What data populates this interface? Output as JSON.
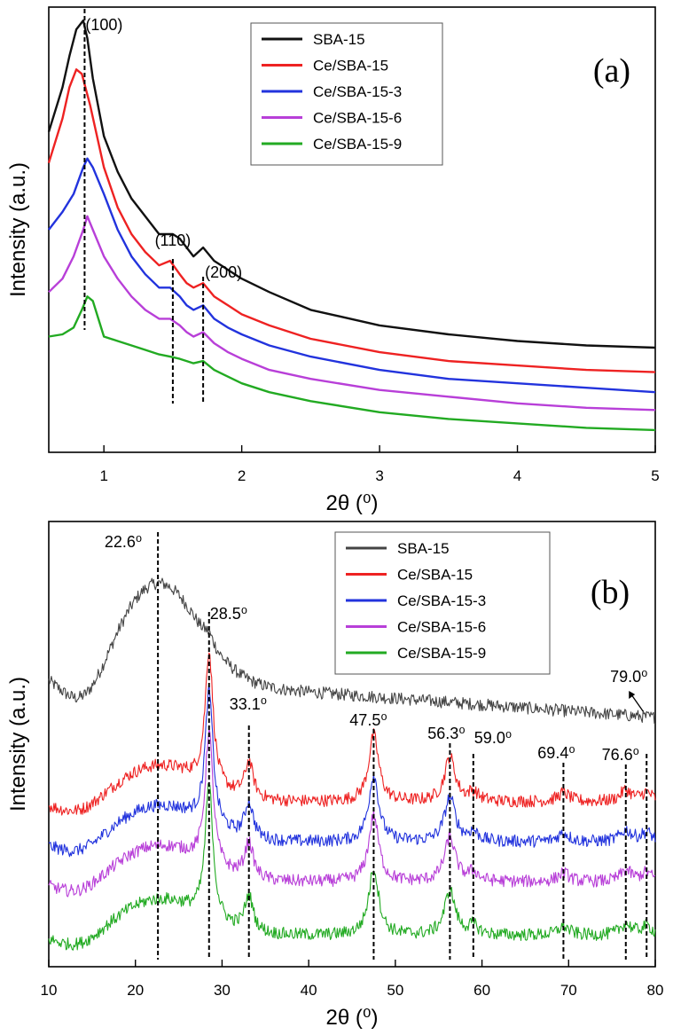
{
  "chart_data": [
    {
      "panel": "(a)",
      "type": "line",
      "xlabel": "2θ (⁰)",
      "ylabel": "Intensity (a.u.)",
      "xlim": [
        0.6,
        5.0
      ],
      "ylim": [
        0,
        100
      ],
      "xticks": [
        1,
        2,
        3,
        4,
        5
      ],
      "y_ticks_labeled": false,
      "legend": {
        "position": "top-right",
        "entries": [
          "SBA-15",
          "Ce/SBA-15",
          "Ce/SBA-15-3",
          "Ce/SBA-15-6",
          "Ce/SBA-15-9"
        ]
      },
      "series": [
        {
          "name": "SBA-15",
          "color": "#111111",
          "x": [
            0.6,
            0.7,
            0.75,
            0.8,
            0.85,
            0.88,
            0.92,
            1.0,
            1.1,
            1.2,
            1.3,
            1.4,
            1.45,
            1.5,
            1.55,
            1.6,
            1.65,
            1.72,
            1.8,
            1.9,
            2.0,
            2.2,
            2.5,
            3.0,
            3.5,
            4.0,
            4.5,
            5.0
          ],
          "y": [
            72,
            82,
            89,
            95,
            97,
            93,
            84,
            71,
            63,
            57,
            53,
            49,
            49,
            49,
            48,
            46,
            44,
            46,
            43,
            41,
            39,
            36,
            32,
            28.5,
            26.5,
            25,
            24,
            23.5
          ]
        },
        {
          "name": "Ce/SBA-15",
          "color": "#ee2222",
          "x": [
            0.6,
            0.7,
            0.75,
            0.8,
            0.84,
            0.9,
            1.0,
            1.1,
            1.2,
            1.3,
            1.4,
            1.48,
            1.55,
            1.6,
            1.65,
            1.72,
            1.8,
            1.9,
            2.0,
            2.2,
            2.5,
            3.0,
            3.5,
            4.0,
            4.5,
            5.0
          ],
          "y": [
            65,
            75,
            82,
            86,
            85,
            78,
            64,
            55,
            49,
            45,
            42,
            43,
            40,
            38,
            37,
            38,
            35,
            33,
            31,
            28.5,
            25.5,
            22.5,
            20.5,
            19.5,
            18.5,
            18
          ]
        },
        {
          "name": "Ce/SBA-15-3",
          "color": "#2233dd",
          "x": [
            0.6,
            0.7,
            0.78,
            0.85,
            0.88,
            0.92,
            1.0,
            1.1,
            1.2,
            1.3,
            1.4,
            1.48,
            1.55,
            1.6,
            1.65,
            1.72,
            1.8,
            1.9,
            2.0,
            2.2,
            2.5,
            3.0,
            3.5,
            4.0,
            4.5,
            5.0
          ],
          "y": [
            50,
            54,
            58,
            64,
            66,
            64,
            58,
            50,
            44,
            40,
            37,
            37,
            35,
            33,
            32,
            33,
            30,
            28,
            26.5,
            24,
            21.5,
            18.5,
            16.5,
            15.5,
            14.5,
            13.5
          ]
        },
        {
          "name": "Ce/SBA-15-6",
          "color": "#b83fd8",
          "x": [
            0.6,
            0.7,
            0.78,
            0.85,
            0.88,
            0.92,
            1.0,
            1.1,
            1.2,
            1.3,
            1.4,
            1.48,
            1.55,
            1.6,
            1.65,
            1.72,
            1.8,
            1.9,
            2.0,
            2.2,
            2.5,
            3.0,
            3.5,
            4.0,
            4.5,
            5.0
          ],
          "y": [
            36,
            39,
            44,
            50,
            53,
            50,
            44,
            39,
            35,
            32,
            30,
            30,
            28.5,
            27,
            26,
            27,
            24.5,
            22.5,
            21,
            18.5,
            16.5,
            14,
            12.5,
            11,
            10,
            9.5
          ]
        },
        {
          "name": "Ce/SBA-15-9",
          "color": "#22aa22",
          "x": [
            0.6,
            0.7,
            0.78,
            0.84,
            0.88,
            0.92,
            0.97,
            1.0,
            1.1,
            1.2,
            1.3,
            1.4,
            1.48,
            1.55,
            1.6,
            1.65,
            1.72,
            1.8,
            1.9,
            2.0,
            2.2,
            2.5,
            3.0,
            3.5,
            4.0,
            4.5,
            5.0
          ],
          "y": [
            26,
            26.5,
            28,
            32,
            35,
            34,
            29,
            26,
            25,
            24,
            23,
            22,
            21.5,
            21,
            20.5,
            20,
            20.5,
            18.5,
            17,
            15.5,
            13.5,
            11.5,
            9,
            7.5,
            6.5,
            5.5,
            5
          ]
        }
      ],
      "reference_lines": [
        0.86,
        1.5,
        1.72
      ],
      "annotations": [
        {
          "text": "(100)",
          "x": 0.86
        },
        {
          "text": "(110)",
          "x": 1.5
        },
        {
          "text": "(200)",
          "x": 1.72
        }
      ]
    },
    {
      "panel": "(b)",
      "type": "line",
      "xlabel": "2θ (⁰)",
      "ylabel": "Intensity (a.u.)",
      "xlim": [
        10,
        80
      ],
      "ylim": [
        0,
        100
      ],
      "xticks": [
        10,
        20,
        30,
        40,
        50,
        60,
        70,
        80
      ],
      "y_ticks_labeled": false,
      "legend": {
        "position": "top-right",
        "entries": [
          "SBA-15",
          "Ce/SBA-15",
          "Ce/SBA-15-3",
          "Ce/SBA-15-6",
          "Ce/SBA-15-9"
        ]
      },
      "series": [
        {
          "name": "SBA-15",
          "color": "#444444",
          "baseline": 56,
          "hump": 22,
          "ce_peaks": false
        },
        {
          "name": "Ce/SBA-15",
          "color": "#ee2222",
          "baseline": 37,
          "hump": 8,
          "ce_peaks": true
        },
        {
          "name": "Ce/SBA-15-3",
          "color": "#2233dd",
          "baseline": 28,
          "hump": 8,
          "ce_peaks": true
        },
        {
          "name": "Ce/SBA-15-6",
          "color": "#b83fd8",
          "baseline": 19,
          "hump": 8,
          "ce_peaks": true
        },
        {
          "name": "Ce/SBA-15-9",
          "color": "#22aa22",
          "baseline": 7,
          "hump": 8,
          "ce_peaks": true
        }
      ],
      "peaks": [
        {
          "position": 28.5,
          "height": 30,
          "width": 0.55
        },
        {
          "position": 33.1,
          "height": 8,
          "width": 0.6
        },
        {
          "position": 47.5,
          "height": 15,
          "width": 0.7
        },
        {
          "position": 56.3,
          "height": 10,
          "width": 0.75
        },
        {
          "position": 59.0,
          "height": 2,
          "width": 0.7
        },
        {
          "position": 69.4,
          "height": 2,
          "width": 0.8
        },
        {
          "position": 76.6,
          "height": 2.5,
          "width": 0.8
        },
        {
          "position": 79.0,
          "height": 2,
          "width": 0.8
        }
      ],
      "reference_lines": [
        22.6,
        28.5,
        33.1,
        47.5,
        56.3,
        59.0,
        69.4,
        76.6,
        79.0
      ],
      "annotations": [
        {
          "text": "22.6⁰",
          "x": 22.6
        },
        {
          "text": "28.5⁰",
          "x": 28.5
        },
        {
          "text": "33.1⁰",
          "x": 33.1
        },
        {
          "text": "47.5⁰",
          "x": 47.5
        },
        {
          "text": "56.3⁰",
          "x": 56.3
        },
        {
          "text": "59.0⁰",
          "x": 59.0
        },
        {
          "text": "69.4⁰",
          "x": 69.4
        },
        {
          "text": "76.6⁰",
          "x": 76.6
        },
        {
          "text": "79.0⁰",
          "x": 79.0
        }
      ]
    }
  ]
}
